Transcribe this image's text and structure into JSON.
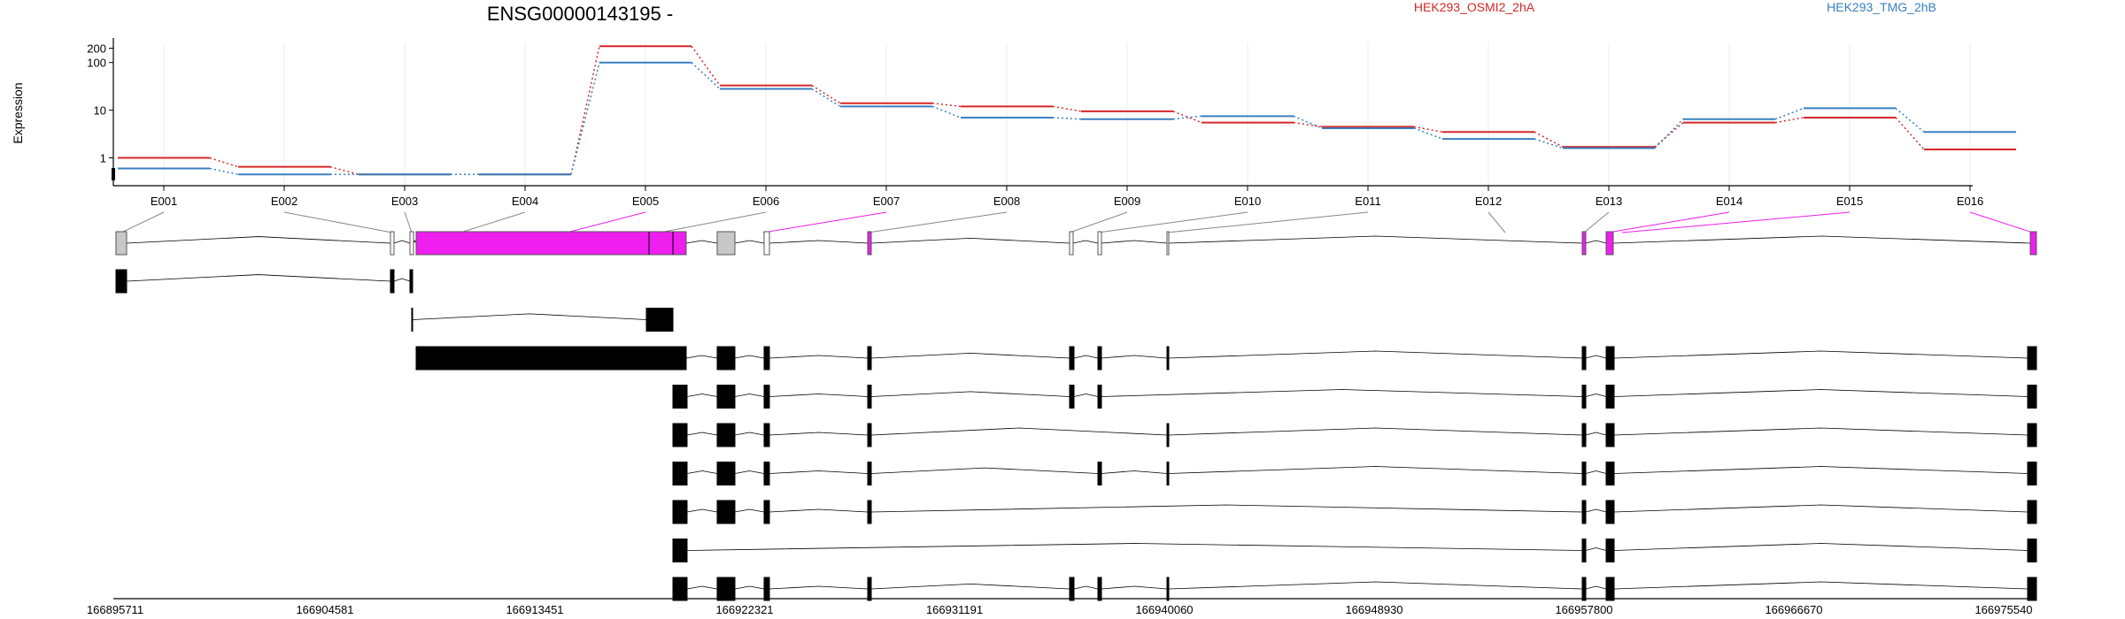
{
  "chart_data": {
    "type": "line",
    "title": "ENSG00000143195 -",
    "ylabel": "Expression",
    "yscale": "log",
    "ylim": [
      0.4,
      300
    ],
    "yticks": [
      1,
      10,
      100,
      200
    ],
    "grid": true,
    "legend_placement": "top",
    "categories": [
      "E001",
      "E002",
      "E003",
      "E004",
      "E005",
      "E006",
      "E007",
      "E008",
      "E009",
      "E010",
      "E011",
      "E012",
      "E013",
      "E014",
      "E015",
      "E016"
    ],
    "series": [
      {
        "name": "HEK293_OSMI2_2hA",
        "color": "#d62728",
        "values": [
          1.0,
          0.65,
          0.45,
          0.45,
          220,
          33,
          14,
          12,
          9.5,
          5.5,
          4.5,
          3.5,
          1.7,
          5.5,
          7,
          1.5
        ]
      },
      {
        "name": "HEK293_TMG_2hB",
        "color": "#3a7fc1",
        "values": [
          0.6,
          0.45,
          0.45,
          0.45,
          100,
          28,
          12,
          7,
          6.5,
          7.5,
          4.2,
          2.5,
          1.6,
          6.5,
          11,
          3.5
        ]
      }
    ],
    "genomic_coordinates": [
      "166895711",
      "166904581",
      "166913451",
      "166922321",
      "166931191",
      "166940060",
      "166948930",
      "166957800",
      "166966670",
      "166975540"
    ],
    "highlight_color": "#ee1eee"
  }
}
